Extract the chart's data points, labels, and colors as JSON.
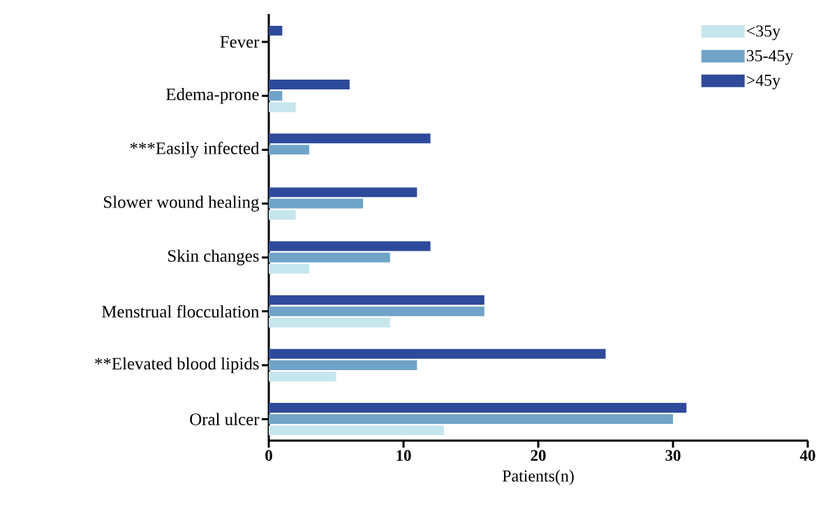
{
  "chart_data": {
    "type": "bar",
    "orientation": "horizontal",
    "xlabel": "Patients(n)",
    "categories": [
      "Fever",
      "Edema-prone",
      "***Easily infected",
      "Slower wound healing",
      "Skin changes",
      "Menstrual flocculation",
      "**Elevated blood lipids",
      "Oral ulcer"
    ],
    "series": [
      {
        "name": "<35y",
        "color": "#c6e6ee",
        "values": [
          0,
          2,
          0,
          2,
          3,
          9,
          5,
          13
        ]
      },
      {
        "name": "35-45y",
        "color": "#6fa3c8",
        "values": [
          0,
          1,
          3,
          7,
          9,
          16,
          11,
          30
        ]
      },
      {
        "name": ">45y",
        "color": "#2e4a9a",
        "values": [
          1,
          6,
          12,
          11,
          12,
          16,
          25,
          31
        ]
      }
    ],
    "xlim": [
      0,
      40
    ],
    "xticks": [
      0,
      10,
      20,
      30,
      40
    ],
    "grid": false,
    "legend": "top right"
  }
}
